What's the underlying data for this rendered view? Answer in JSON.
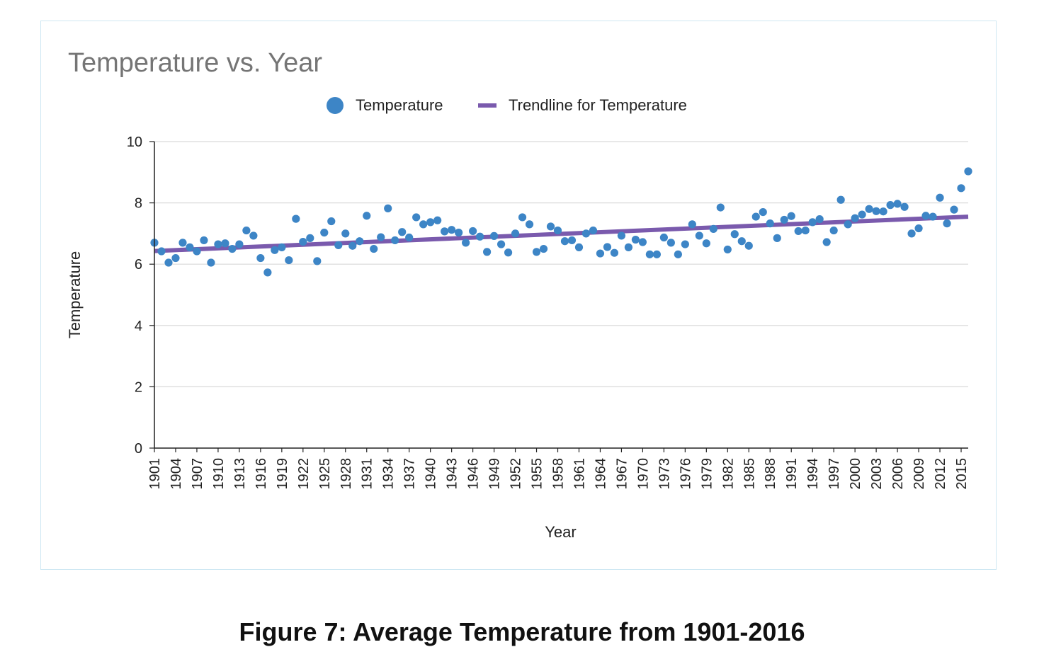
{
  "caption": "Figure 7: Average Temperature from 1901-2016",
  "colors": {
    "points": "#3d85c6",
    "trend": "#7a5aad",
    "grid": "#d9d9d9",
    "axis": "#222222",
    "title": "#757575",
    "frame": "#cfe8f3"
  },
  "chart_data": {
    "type": "scatter",
    "title": "Temperature vs. Year",
    "xlabel": "Year",
    "ylabel": "Temperature",
    "ylim": [
      0,
      10
    ],
    "yticks": [
      "0",
      "2",
      "4",
      "6",
      "8",
      "10"
    ],
    "xlim": [
      1901,
      2016
    ],
    "xticks": [
      "1901",
      "1904",
      "1907",
      "1910",
      "1913",
      "1916",
      "1919",
      "1922",
      "1925",
      "1928",
      "1931",
      "1934",
      "1937",
      "1940",
      "1943",
      "1946",
      "1949",
      "1952",
      "1955",
      "1958",
      "1961",
      "1964",
      "1967",
      "1970",
      "1973",
      "1976",
      "1979",
      "1982",
      "1985",
      "1988",
      "1991",
      "1994",
      "1997",
      "2000",
      "2003",
      "2006",
      "2009",
      "2012",
      "2015"
    ],
    "grid": "horizontal",
    "legend_position": "top",
    "legend": [
      "Temperature",
      "Trendline for Temperature"
    ],
    "series": [
      {
        "name": "Temperature",
        "x": [
          1901,
          1902,
          1903,
          1904,
          1905,
          1906,
          1907,
          1908,
          1909,
          1910,
          1911,
          1912,
          1913,
          1914,
          1915,
          1916,
          1917,
          1918,
          1919,
          1920,
          1921,
          1922,
          1923,
          1924,
          1925,
          1926,
          1927,
          1928,
          1929,
          1930,
          1931,
          1932,
          1933,
          1934,
          1935,
          1936,
          1937,
          1938,
          1939,
          1940,
          1941,
          1942,
          1943,
          1944,
          1945,
          1946,
          1947,
          1948,
          1949,
          1950,
          1951,
          1952,
          1953,
          1954,
          1955,
          1956,
          1957,
          1958,
          1959,
          1960,
          1961,
          1962,
          1963,
          1964,
          1965,
          1966,
          1967,
          1968,
          1969,
          1970,
          1971,
          1972,
          1973,
          1974,
          1975,
          1976,
          1977,
          1978,
          1979,
          1980,
          1981,
          1982,
          1983,
          1984,
          1985,
          1986,
          1987,
          1988,
          1989,
          1990,
          1991,
          1992,
          1993,
          1994,
          1995,
          1996,
          1997,
          1998,
          1999,
          2000,
          2001,
          2002,
          2003,
          2004,
          2005,
          2006,
          2007,
          2008,
          2009,
          2010,
          2011,
          2012,
          2013,
          2014,
          2015,
          2016
        ],
        "y": [
          6.7,
          6.42,
          6.05,
          6.2,
          6.7,
          6.55,
          6.42,
          6.78,
          6.05,
          6.65,
          6.68,
          6.5,
          6.65,
          7.1,
          6.93,
          6.2,
          5.73,
          6.46,
          6.55,
          6.13,
          7.48,
          6.73,
          6.85,
          6.1,
          7.03,
          7.4,
          6.62,
          7.0,
          6.6,
          6.75,
          7.58,
          6.5,
          6.88,
          7.82,
          6.78,
          7.05,
          6.87,
          7.53,
          7.3,
          7.37,
          7.43,
          7.07,
          7.12,
          7.03,
          6.7,
          7.08,
          6.9,
          6.4,
          6.92,
          6.65,
          6.38,
          7.0,
          7.53,
          7.3,
          6.4,
          6.5,
          7.23,
          7.1,
          6.75,
          6.78,
          6.55,
          7.0,
          7.1,
          6.35,
          6.56,
          6.37,
          6.93,
          6.55,
          6.8,
          6.72,
          6.32,
          6.32,
          6.87,
          6.7,
          6.32,
          6.65,
          7.3,
          6.93,
          6.68,
          7.15,
          7.85,
          6.48,
          6.98,
          6.75,
          6.6,
          7.55,
          7.7,
          7.33,
          6.85,
          7.45,
          7.57,
          7.08,
          7.1,
          7.37,
          7.47,
          6.72,
          7.1,
          8.1,
          7.3,
          7.5,
          7.62,
          7.8,
          7.73,
          7.72,
          7.93,
          7.97,
          7.87,
          7.0,
          7.17,
          7.58,
          7.55,
          8.17,
          7.33,
          7.78,
          8.48,
          9.03
        ]
      },
      {
        "name": "Trendline for Temperature",
        "type": "line",
        "x": [
          1901,
          2016
        ],
        "y": [
          6.43,
          7.55
        ]
      }
    ]
  }
}
